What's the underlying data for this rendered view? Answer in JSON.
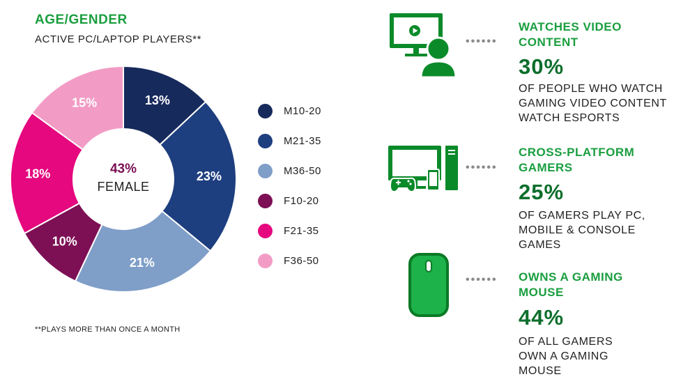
{
  "left_panel": {
    "title": "AGE/GENDER",
    "subtitle": "ACTIVE PC/LAPTOP PLAYERS**",
    "center_percent": "43%",
    "center_label": "FEMALE",
    "footnote": "**PLAYS MORE THAN ONCE A MONTH"
  },
  "chart_data": {
    "type": "pie",
    "title": "AGE/GENDER",
    "subtitle": "ACTIVE PC/LAPTOP PLAYERS**",
    "categories": [
      "M10-20",
      "M21-35",
      "M36-50",
      "F10-20",
      "F21-35",
      "F36-50"
    ],
    "values": [
      13,
      23,
      21,
      10,
      18,
      15
    ],
    "labels": [
      "13%",
      "23%",
      "21%",
      "10%",
      "18%",
      "15%"
    ],
    "colors": [
      "#172a5c",
      "#1e3f7f",
      "#7f9ec8",
      "#7d0f55",
      "#e5087e",
      "#f29cc5"
    ],
    "donut": true,
    "legend_position": "right"
  },
  "stats": [
    {
      "icon": "monitor-person-icon",
      "title_lines": [
        "WATCHES VIDEO",
        "CONTENT"
      ],
      "value": "30%",
      "desc_lines": [
        "OF PEOPLE WHO WATCH",
        "GAMING VIDEO CONTENT",
        "WATCH ESPORTS"
      ]
    },
    {
      "icon": "multi-device-icon",
      "title_lines": [
        "CROSS-PLATFORM",
        "GAMERS"
      ],
      "value": "25%",
      "desc_lines": [
        "OF GAMERS PLAY PC,",
        "MOBILE & CONSOLE",
        "GAMES"
      ]
    },
    {
      "icon": "mouse-icon",
      "title_lines": [
        "OWNS A GAMING",
        "MOUSE"
      ],
      "value": "44%",
      "desc_lines": [
        "OF ALL GAMERS",
        "OWN A GAMING",
        "MOUSE"
      ]
    }
  ],
  "dots": "••••••",
  "colors": {
    "accent": "#1a9e3f",
    "accent_dark": "#0d6e2c",
    "icon_green": "#0b8a2a"
  }
}
